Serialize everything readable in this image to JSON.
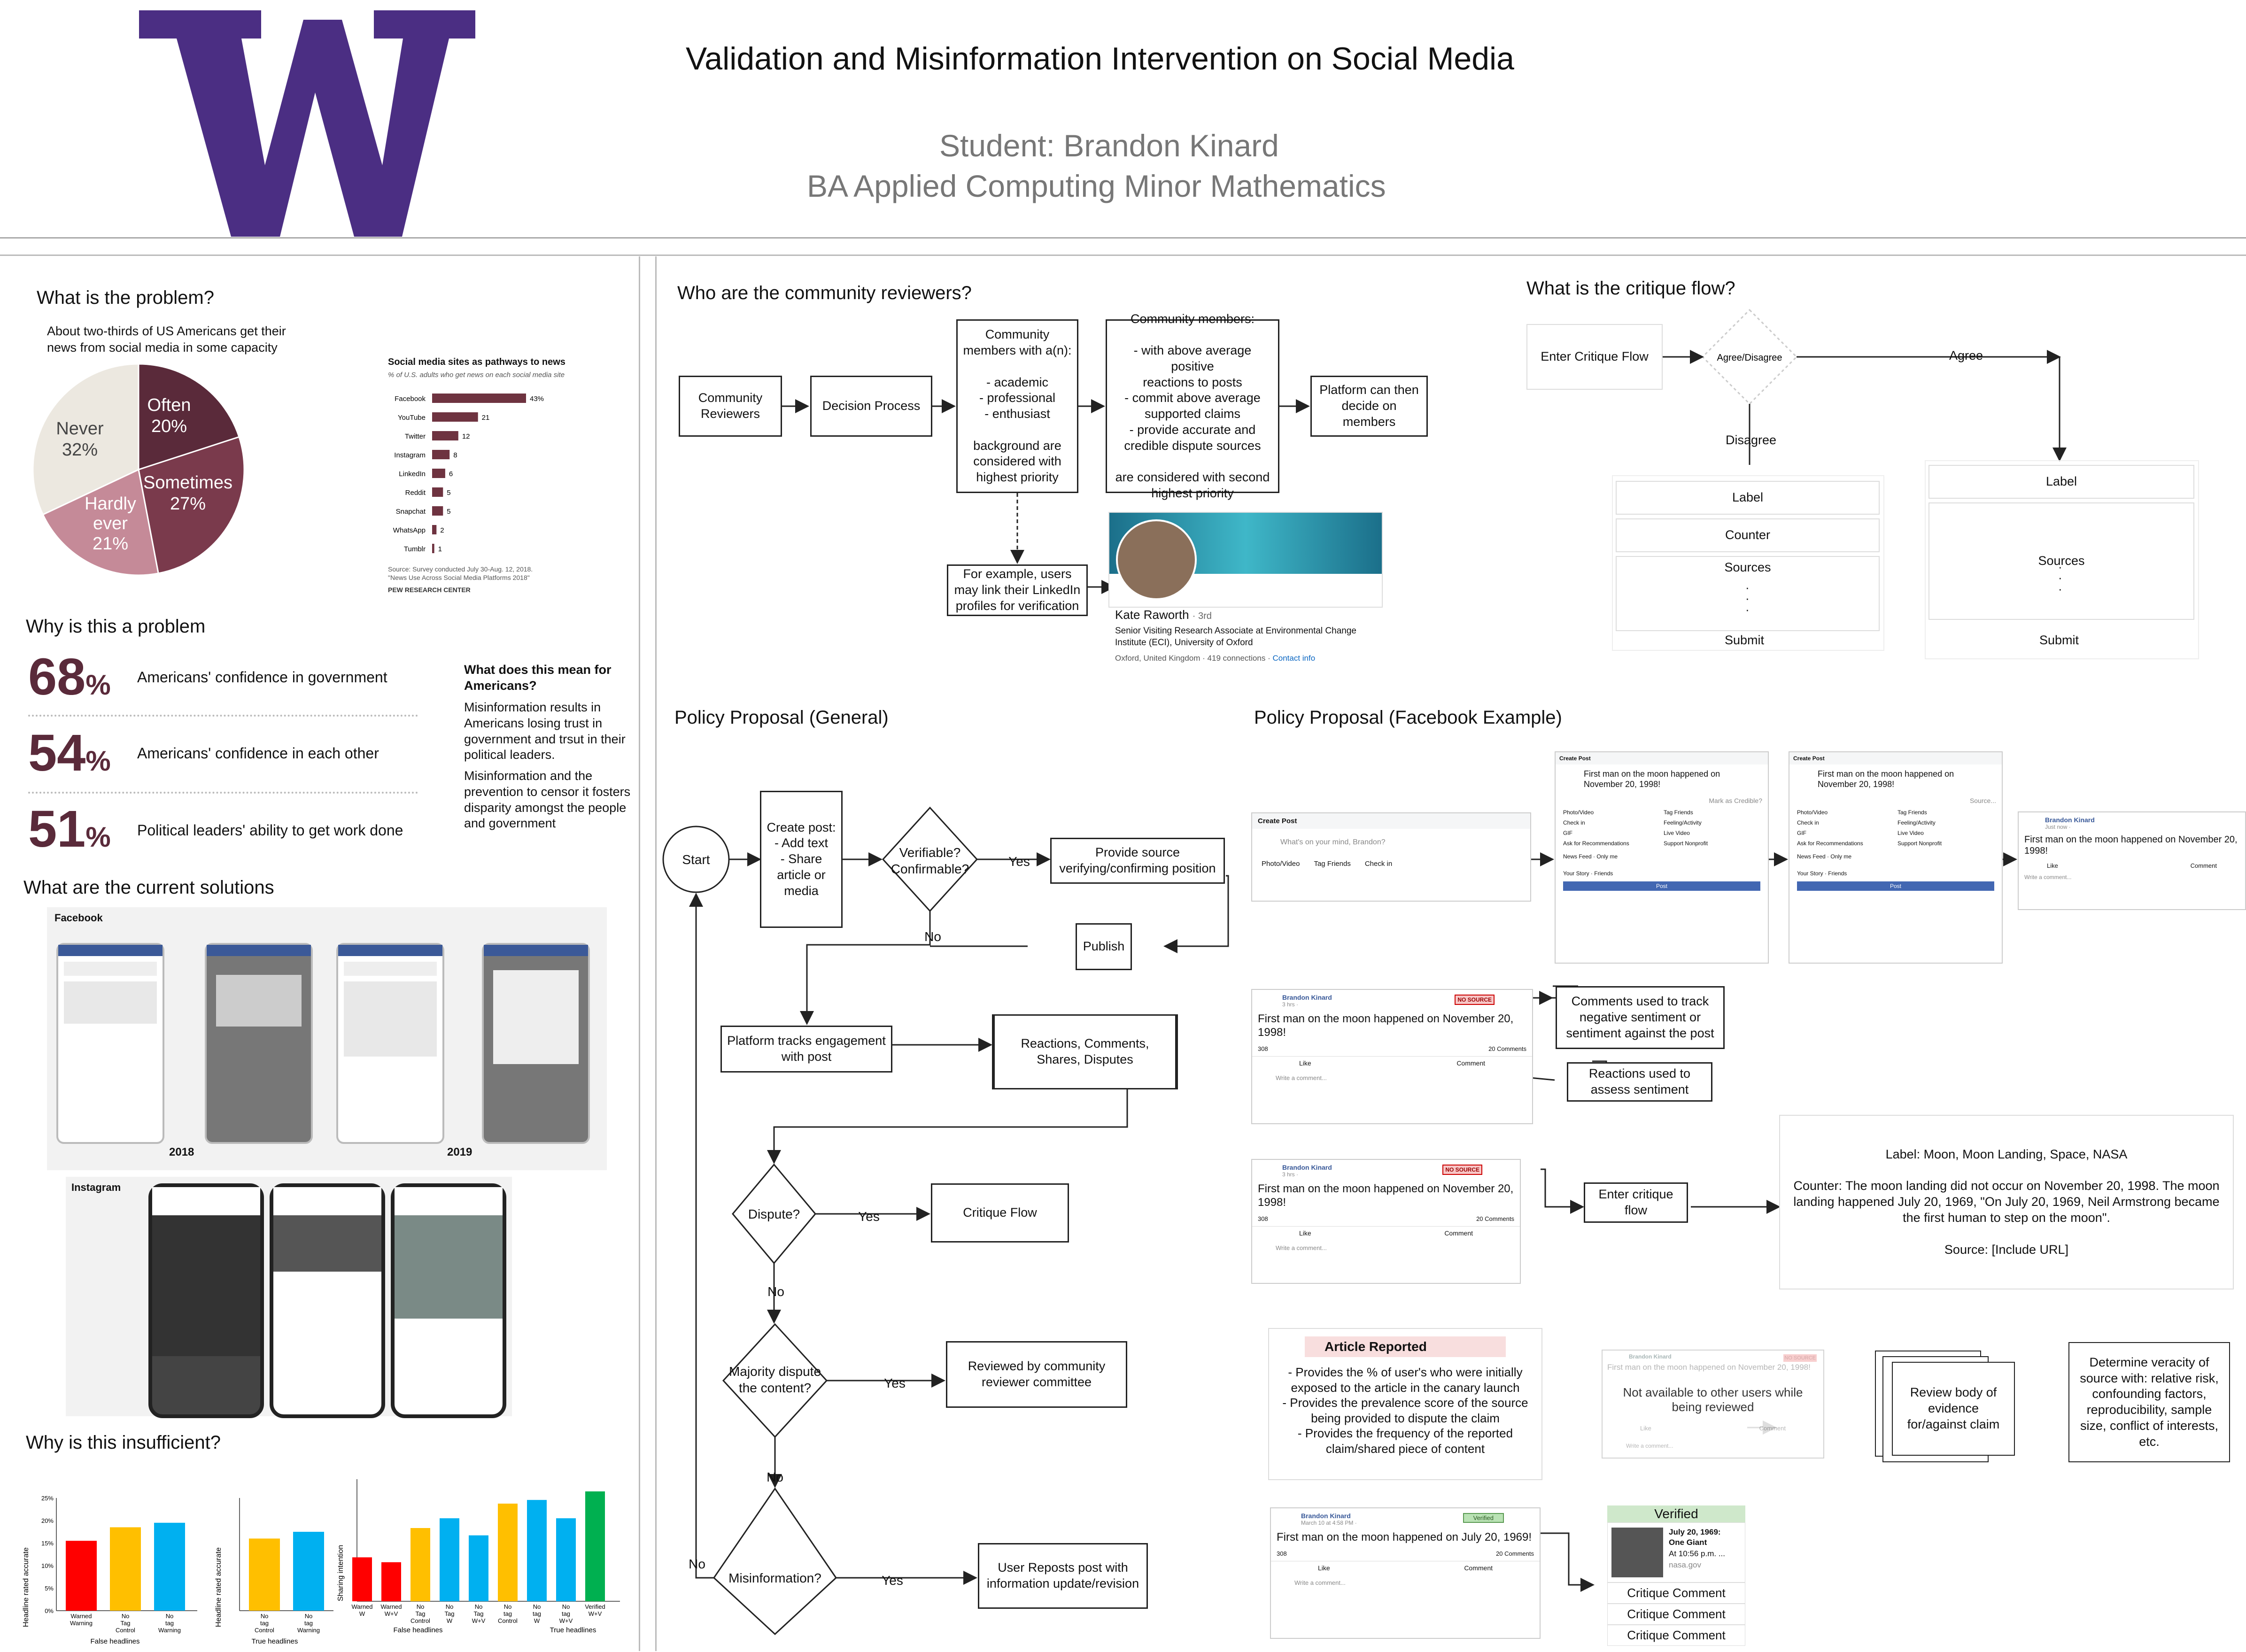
{
  "header": {
    "title": "Validation and Misinformation Intervention on Social Media",
    "student": "Student: Brandon Kinard",
    "degree": "BA Applied Computing Minor Mathematics",
    "logo_letter": "W",
    "brand_color": "#4b2e83"
  },
  "left": {
    "problem_heading": "What is the problem?",
    "problem_text": "About two-thirds of US Americans get their news from social media in some capacity",
    "pie": {
      "type": "pie",
      "slices": [
        {
          "label": "Often",
          "value": 20,
          "color": "#5a2a3a"
        },
        {
          "label": "Sometimes",
          "value": 27,
          "color": "#7a3a4c"
        },
        {
          "label": "Hardly ever",
          "value": 21,
          "color": "#c58a98"
        },
        {
          "label": "Never",
          "value": 32,
          "color": "#ece8e0"
        }
      ],
      "labels": [
        "Often",
        "20%",
        "Sometimes",
        "27%",
        "Hardly",
        "ever",
        "21%",
        "Never",
        "32%"
      ]
    },
    "bar_chart_title": "Social media sites as pathways to news",
    "bar_chart_subtitle": "% of U.S. adults who get news on each social media site",
    "bar_chart_source": "Source: Survey conducted July 30-Aug. 12, 2018.",
    "bar_chart_source2": "\"News Use Across Social Media Platforms 2018\"",
    "bar_chart_org": "PEW RESEARCH CENTER",
    "why_heading": "Why is this a problem",
    "stats": [
      {
        "num": "68",
        "unit": "%",
        "text": "Americans' confidence in government"
      },
      {
        "num": "54",
        "unit": "%",
        "text": "Americans' confidence in each other"
      },
      {
        "num": "51",
        "unit": "%",
        "text": "Political leaders' ability to get work done"
      }
    ],
    "meaning_heading": "What does this mean for Americans?",
    "meaning_p1": "Misinformation results in Americans losing trust in government and trsut in their political leaders.",
    "meaning_p2": "Misinformation and the prevention to censor it fosters disparity amongst the people and government",
    "solutions_heading": "What are the current solutions",
    "facebook_label": "Facebook",
    "year_2018": "2018",
    "year_2019": "2019",
    "instagram_label": "Instagram",
    "insufficient_heading": "Why is this insufficient?",
    "ylabel_1": "Headline rated accurate",
    "ylabel_3": "Sharing intention",
    "group_false": "False headlines",
    "group_true": "True headlines",
    "yticks": [
      "25%",
      "20%",
      "15%",
      "10%",
      "5%",
      "0%"
    ]
  },
  "chart_data": [
    {
      "type": "pie",
      "categories": [
        "Often",
        "Sometimes",
        "Hardly ever",
        "Never"
      ],
      "values": [
        20,
        27,
        21,
        32
      ]
    },
    {
      "type": "bar",
      "title": "Social media sites as pathways to news",
      "categories": [
        "Facebook",
        "YouTube",
        "Twitter",
        "Instagram",
        "LinkedIn",
        "Reddit",
        "Snapchat",
        "WhatsApp",
        "Tumblr"
      ],
      "values": [
        43,
        21,
        12,
        8,
        6,
        5,
        5,
        2,
        1
      ],
      "labels": [
        "43%",
        "21",
        "12",
        "8",
        "6",
        "5",
        "5",
        "2",
        "1"
      ]
    },
    {
      "type": "bar",
      "categories": [
        "Warned Warning",
        "No Tag Control",
        "No tag Warning"
      ],
      "values": [
        15.5,
        18.5,
        19.5
      ],
      "ylim": [
        0,
        25
      ],
      "xlabel": "False headlines",
      "ylabel": "Headline rated accurate"
    },
    {
      "type": "bar",
      "categories": [
        "No tag Control",
        "No tag Warning"
      ],
      "values": [
        0.64,
        0.7
      ],
      "xlabel": "True headlines",
      "ylabel": "Headline rated accurate"
    },
    {
      "type": "bar",
      "categories": [
        "Warned W",
        "Warned W+V",
        "No Tag Control",
        "No Tag W",
        "No Tag W+V",
        "No tag Control",
        "No tag W",
        "No tag W+V",
        "Verified W+V"
      ],
      "values": [
        0.36,
        0.32,
        0.6,
        0.68,
        0.54,
        0.8,
        0.83,
        0.68,
        0.9
      ],
      "xlabel": "True headlines",
      "ylabel": "Sharing intention"
    }
  ],
  "reviewers": {
    "heading": "Who are the community reviewers?",
    "box_community": "Community\nReviewers",
    "box_decision": "Decision Process",
    "box_members": "Community\nmembers with a(n):\n\n- academic\n- professional\n- enthusiast\n\nbackground are\nconsidered with\nhighest priority",
    "box_criteria": "Community members:\n\n- with above average positive\nreactions to posts\n- commit above average\nsupported claims\n- provide accurate and\ncredible dispute sources\n\nare considered with second\nhighest priority",
    "box_platform": "Platform can then\ndecide on\nmembers",
    "box_example": "For example, users\nmay link their LinkedIn\nprofiles for verification",
    "linkedin_name": "Kate Raworth",
    "linkedin_degree": "· 3rd",
    "linkedin_title": "Senior Visiting Research Associate at Environmental Change Institute (ECI), University of Oxford",
    "linkedin_location": "Oxford, United Kingdom · 419 connections ·",
    "linkedin_contact": "Contact info"
  },
  "critique": {
    "heading": "What is the critique flow?",
    "enter": "Enter Critique Flow",
    "agree_disagree": "Agree/Disagree",
    "agree": "Agree",
    "disagree": "Disagree",
    "left_fields": [
      "Label",
      "Counter",
      "Sources"
    ],
    "right_fields": [
      "Label",
      "Sources"
    ],
    "dots": "·\n·\n·",
    "submit": "Submit"
  },
  "policy_general": {
    "heading": "Policy Proposal (General)",
    "start": "Start",
    "create_post": "Create post:\n- Add text\n- Share\narticle or\nmedia",
    "verifiable": "Verifiable?\nConfirmable?",
    "yes": "Yes",
    "no": "No",
    "provide_source": "Provide source\nverifying/confirming position",
    "publish": "Publish",
    "tracks": "Platform tracks engagement\nwith post",
    "reactions": "Reactions, Comments,\nShares, Disputes",
    "dispute": "Dispute?",
    "critique_flow": "Critique Flow",
    "majority": "Majority dispute\nthe content?",
    "reviewed": "Reviewed by community\nreviewer committee",
    "misinformation": "Misinformation?",
    "user_reposts": "User Reposts post with\ninformation update/revision"
  },
  "policy_fb": {
    "heading": "Policy Proposal (Facebook Example)",
    "create_post": "Create Post",
    "whats_on_mind": "What's on your mind, Brandon?",
    "photo_video": "Photo/Video",
    "tag_friends": "Tag Friends",
    "check_in": "Check in",
    "post_text": "First man on the moon happened on November 20, 1998!",
    "mark_credible": "Mark as Credible?",
    "source_placeholder": "Source...",
    "news_feed": "News Feed",
    "your_story": "Your Story",
    "only_me": "Only me",
    "friends": "Friends",
    "post_btn": "Post",
    "menu_items": [
      "Photo/Video",
      "Tag Friends",
      "Check in",
      "Feeling/Activity",
      "GIF",
      "Live Video",
      "Ask for Recommendations",
      "Support Nonprofit"
    ],
    "author": "Brandon Kinard",
    "time_3hrs": "3 hrs · ",
    "time_just_now": "Just now · ",
    "no_source": "NO SOURCE",
    "reaction_count": "308",
    "comment_count": "20 Comments",
    "like": "Like",
    "comment": "Comment",
    "write_comment": "Write a comment...",
    "comments_track": "Comments used to track\nnegative sentiment or\nsentiment against the post",
    "reactions_assess": "Reactions used to\nassess sentiment",
    "enter_critique": "Enter critique\nflow",
    "critique_label": "Label: Moon, Moon Landing, Space, NASA",
    "critique_counter": "Counter: The moon landing did not occur on November 20, 1998. The moon landing happened July 20, 1969, \"On July 20, 1969, Neil Armstrong became the first human to step on the moon\".",
    "critique_source": "Source: [Include URL]",
    "article_reported": "Article Reported",
    "reported_text": "- Provides the % of user's who were initially exposed to the article in the canary launch\n- Provides the prevalence score of the source being provided to dispute the claim\n- Provides the frequency of the reported claim/shared piece of content",
    "not_available": "Not available to other users while being reviewed",
    "review_body": "Review body of\nevidence\nfor/against claim",
    "determine": "Determine veracity of\nsource with: relative risk,\nconfounding factors,\nreproducibility, sample\nsize, conflict of interests,\netc.",
    "verified_post_time": "March 10 at 4:58 PM · ",
    "verified_tag": "Verified",
    "verified_post_text": "First man on the moon happened on July 20, 1969!",
    "verified_heading": "Verified",
    "verified_date": "July 20, 1969:",
    "verified_giant": "One Giant",
    "verified_time": "At 10:56 p.m. ...",
    "verified_site": "nasa.gov",
    "critique_comment": "Critique Comment"
  }
}
